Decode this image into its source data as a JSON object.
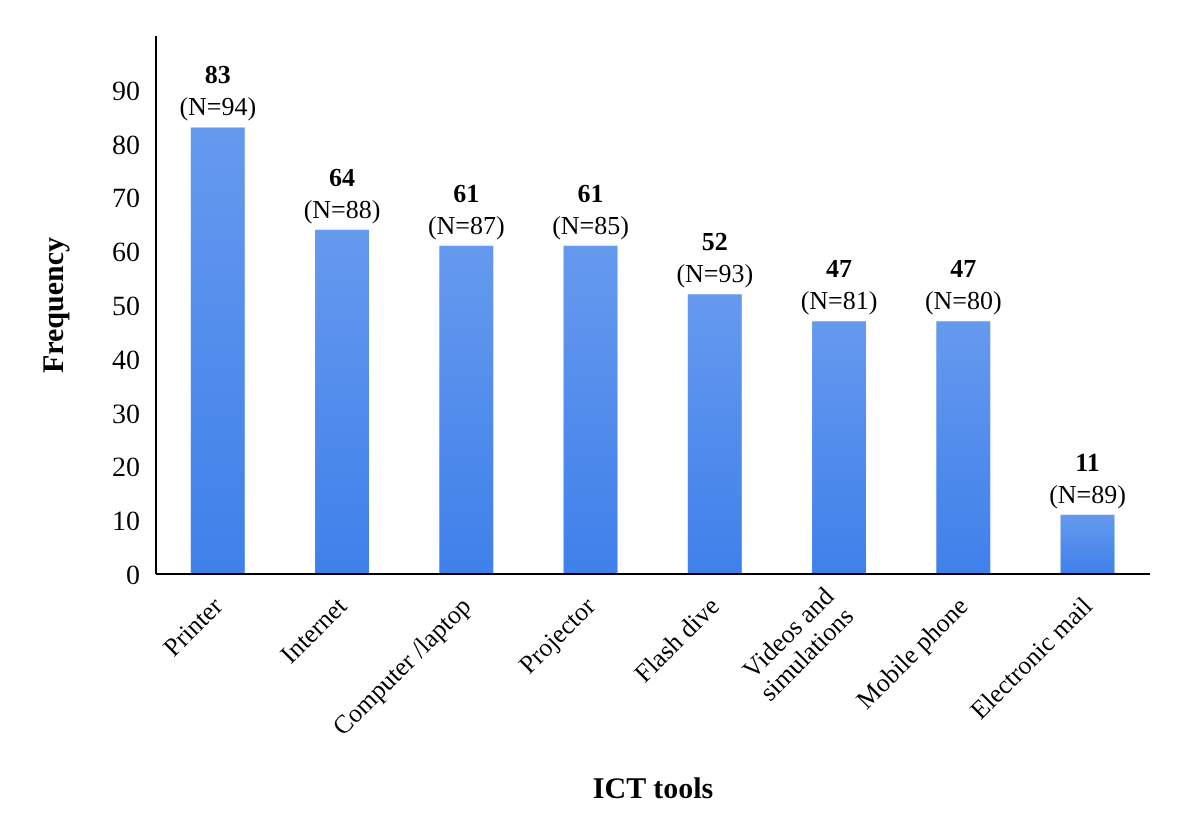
{
  "chart_data": {
    "type": "bar",
    "xlabel": "ICT tools",
    "ylabel": "Frequency",
    "categories": [
      "Printer",
      "Internet",
      "Computer /laptop",
      "Projector",
      "Flash dive",
      "Videos and simulations",
      "Mobile phone",
      "Electronic mail"
    ],
    "values": [
      83,
      64,
      61,
      61,
      52,
      47,
      47,
      11
    ],
    "value_labels": [
      "83\n(N=94)",
      "64\n(N=88)",
      "61\n(N=87)",
      "61\n(N=85)",
      "52\n(N=93)",
      "47\n(N=81)",
      "47\n(N=80)",
      "11\n(N=89)"
    ],
    "color": "#3f80ea",
    "ylim": [
      0,
      100
    ],
    "yticks": [
      0,
      10,
      20,
      30,
      40,
      50,
      60,
      70,
      80,
      90
    ],
    "grid": false,
    "legend": false
  }
}
